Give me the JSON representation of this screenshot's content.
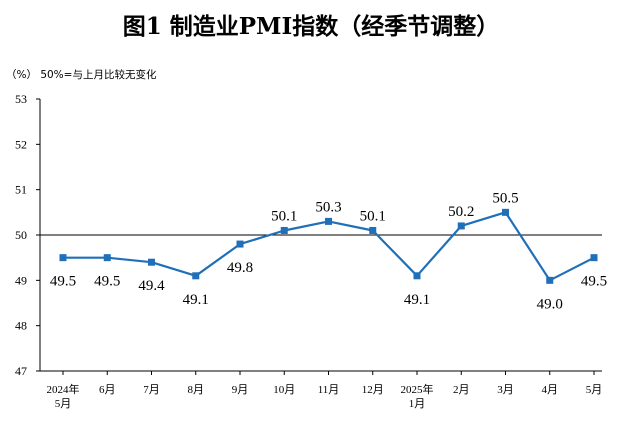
{
  "chart_data": {
    "type": "line",
    "title": "图1  制造业PMI指数（经季节调整）",
    "unit_note": "（%）  50%=与上月比较无变化",
    "xlabel": "",
    "ylabel": "",
    "categories": [
      [
        "2024年",
        "5月"
      ],
      [
        "6月"
      ],
      [
        "7月"
      ],
      [
        "8月"
      ],
      [
        "9月"
      ],
      [
        "10月"
      ],
      [
        "11月"
      ],
      [
        "12月"
      ],
      [
        "2025年",
        "1月"
      ],
      [
        "2月"
      ],
      [
        "3月"
      ],
      [
        "4月"
      ],
      [
        "5月"
      ]
    ],
    "values": [
      49.5,
      49.5,
      49.4,
      49.1,
      49.8,
      50.1,
      50.3,
      50.1,
      49.1,
      50.2,
      50.5,
      49.0,
      49.5
    ],
    "value_labels": [
      "49.5",
      "49.5",
      "49.4",
      "49.1",
      "49.8",
      "50.1",
      "50.3",
      "50.1",
      "49.1",
      "50.2",
      "50.5",
      "49.0",
      "49.5"
    ],
    "label_positions": [
      "below",
      "below",
      "below",
      "below",
      "below",
      "above",
      "above",
      "above",
      "below",
      "above",
      "above",
      "below",
      "below"
    ],
    "ylim": [
      47,
      53
    ],
    "yticks": [
      "47",
      "48",
      "49",
      "50",
      "51",
      "52",
      "53"
    ],
    "reference_line": 50,
    "grid": false,
    "line_color": "#1f6fb9",
    "axis_color": "#000000"
  }
}
